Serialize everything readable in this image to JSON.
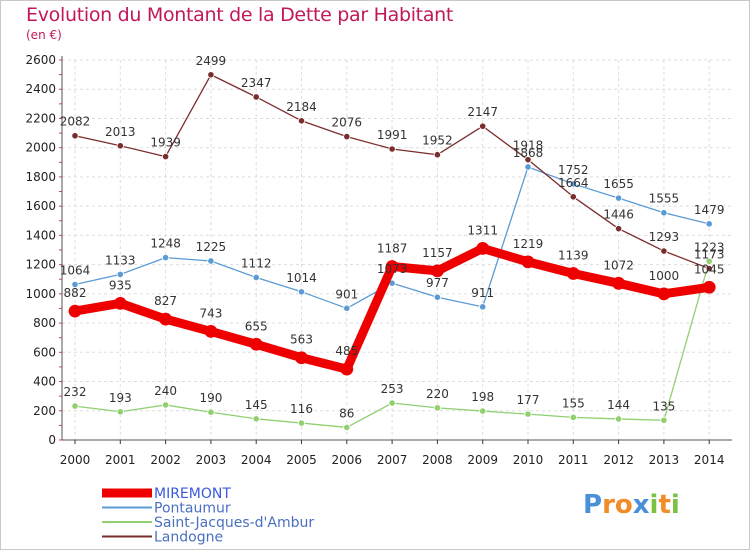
{
  "header": {
    "title": "Evolution du Montant de la Dette par Habitant",
    "unit": "(en €)"
  },
  "logo": {
    "text": "Proxiti",
    "letters": [
      {
        "ch": "P",
        "color": "#4a90d9"
      },
      {
        "ch": "r",
        "color": "#f28c28"
      },
      {
        "ch": "o",
        "color": "#f28c28"
      },
      {
        "ch": "x",
        "color": "#4a90d9"
      },
      {
        "ch": "i",
        "color": "#7cc242"
      },
      {
        "ch": "t",
        "color": "#f28c28"
      },
      {
        "ch": "i",
        "color": "#7cc242"
      }
    ]
  },
  "chart_data": {
    "type": "line",
    "title": "Evolution du Montant de la Dette par Habitant",
    "subtitle": "(en €)",
    "x": [
      "2000",
      "2001",
      "2002",
      "2003",
      "2004",
      "2005",
      "2006",
      "2007",
      "2008",
      "2009",
      "2010",
      "2011",
      "2012",
      "2013",
      "2014"
    ],
    "ylim": [
      0,
      2600
    ],
    "yticks": [
      0,
      200,
      400,
      600,
      800,
      1000,
      1200,
      1400,
      1600,
      1800,
      2000,
      2200,
      2400,
      2600
    ],
    "grid": true,
    "legend_position": "bottom-left",
    "series": [
      {
        "name": "MIREMONT",
        "color": "#ee0000",
        "emphasis": true,
        "values": [
          882,
          935,
          827,
          743,
          655,
          563,
          485,
          1187,
          1157,
          1311,
          1219,
          1139,
          1072,
          1000,
          1045
        ]
      },
      {
        "name": "Pontaumur",
        "color": "#5b9bd5",
        "values": [
          1064,
          1133,
          1248,
          1225,
          1112,
          1014,
          901,
          1073,
          977,
          911,
          1868,
          1752,
          1655,
          1555,
          1479
        ]
      },
      {
        "name": "Saint-Jacques-d'Ambur",
        "color": "#90d070",
        "values": [
          232,
          193,
          240,
          190,
          145,
          116,
          86,
          253,
          220,
          198,
          177,
          155,
          144,
          135,
          1223
        ]
      },
      {
        "name": "Landogne",
        "color": "#7b2d2d",
        "values": [
          2082,
          2013,
          1939,
          2499,
          2347,
          2184,
          2076,
          1991,
          1952,
          2147,
          1918,
          1664,
          1446,
          1293,
          1173
        ]
      }
    ]
  }
}
